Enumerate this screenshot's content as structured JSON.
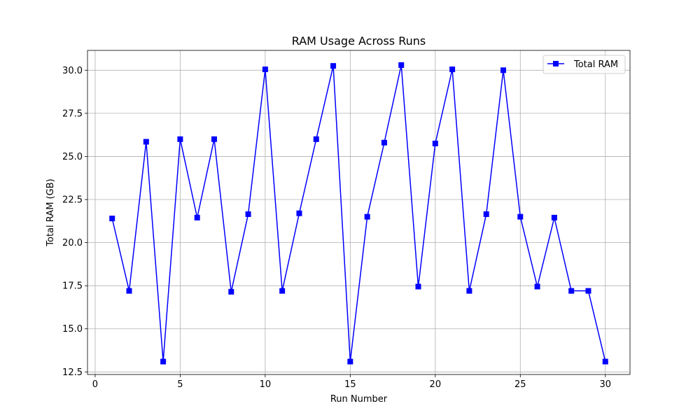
{
  "chart_data": {
    "type": "line",
    "title": "RAM Usage Across Runs",
    "xlabel": "Run Number",
    "ylabel": "Total RAM (GB)",
    "xlim": [
      -0.45,
      31.45
    ],
    "ylim": [
      12.35,
      31.15
    ],
    "x_ticks": [
      0,
      5,
      10,
      15,
      20,
      25,
      30
    ],
    "y_ticks": [
      12.5,
      15.0,
      17.5,
      20.0,
      22.5,
      25.0,
      27.5,
      30.0
    ],
    "x_tick_labels": [
      "0",
      "5",
      "10",
      "15",
      "20",
      "25",
      "30"
    ],
    "y_tick_labels": [
      "12.5",
      "15.0",
      "17.5",
      "20.0",
      "22.5",
      "25.0",
      "27.5",
      "30.0"
    ],
    "grid": true,
    "legend_position": "upper right",
    "series": [
      {
        "name": "Total RAM",
        "color": "#0000ff",
        "marker": "square",
        "x": [
          1,
          2,
          3,
          4,
          5,
          6,
          7,
          8,
          9,
          10,
          11,
          12,
          13,
          14,
          15,
          16,
          17,
          18,
          19,
          20,
          21,
          22,
          23,
          24,
          25,
          26,
          27,
          28,
          29,
          30
        ],
        "values": [
          21.4,
          17.2,
          25.85,
          13.1,
          26.0,
          21.45,
          26.0,
          17.15,
          21.65,
          30.05,
          17.2,
          21.7,
          26.0,
          30.25,
          13.1,
          21.5,
          25.8,
          30.3,
          17.45,
          25.75,
          30.05,
          17.2,
          21.65,
          30.0,
          21.5,
          17.45,
          21.45,
          17.2,
          17.2,
          13.1
        ]
      }
    ]
  }
}
